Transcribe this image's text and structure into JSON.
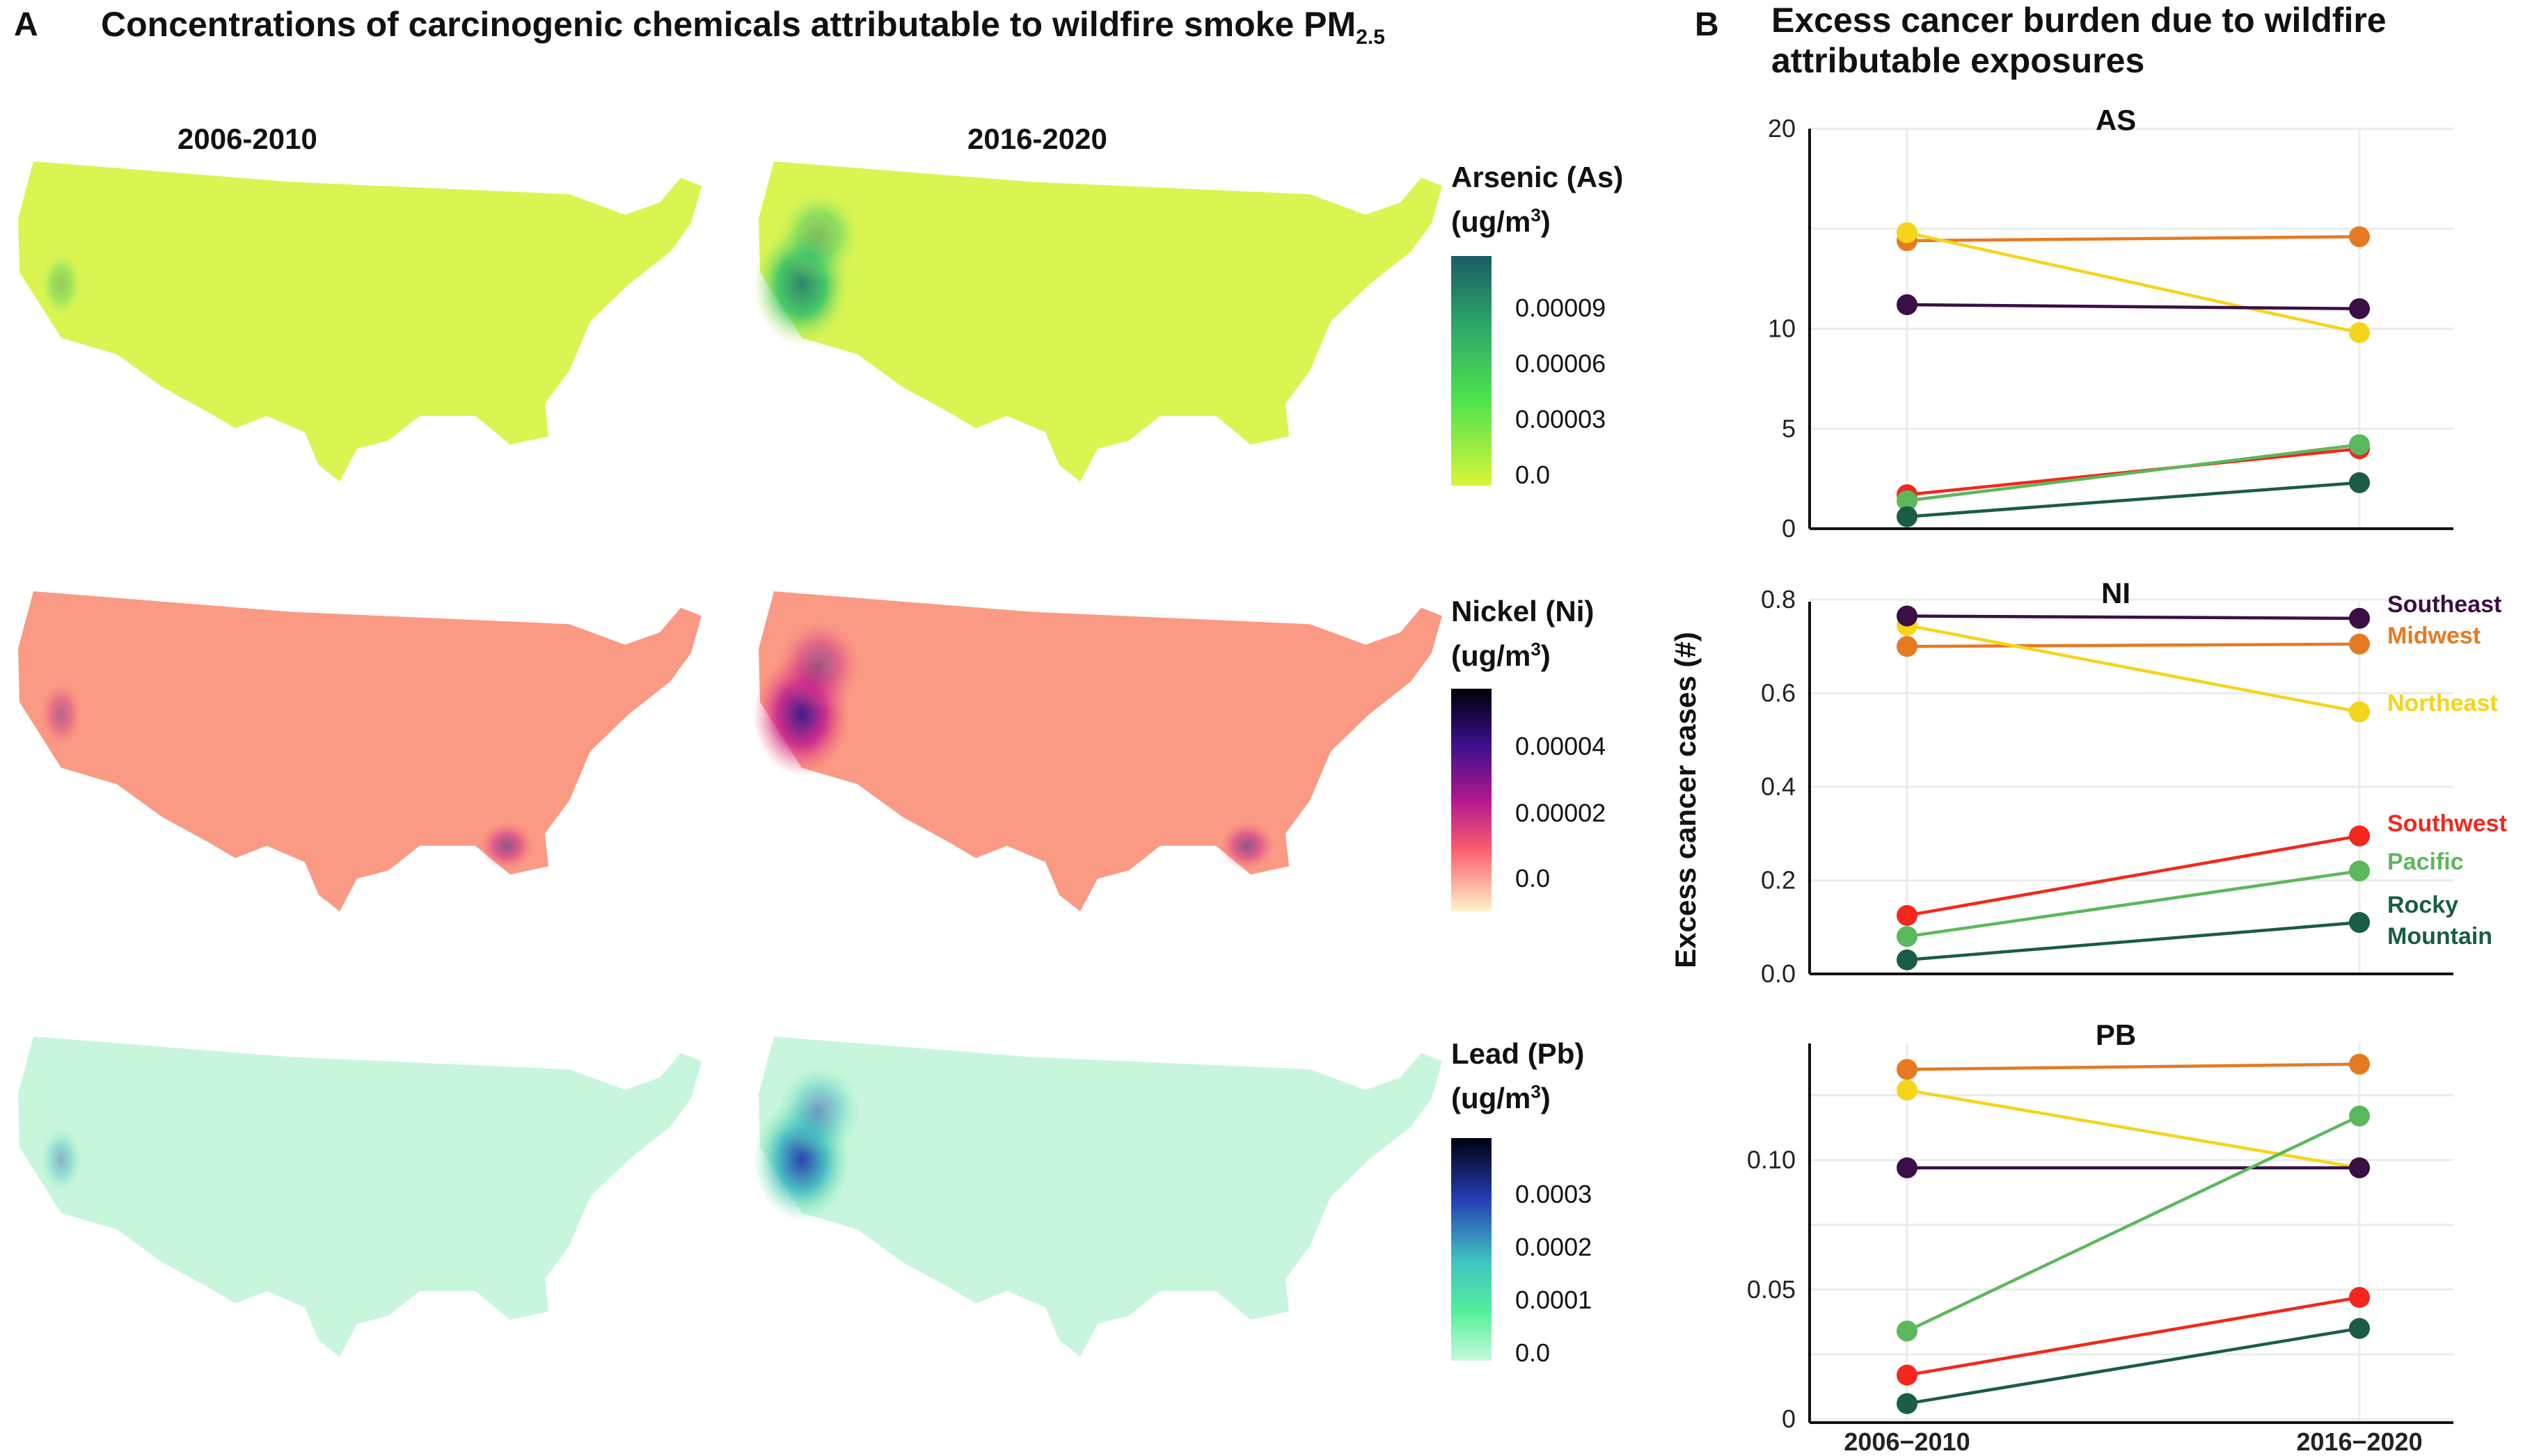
{
  "panel_a": {
    "letter": "A",
    "title": "Concentrations of carcinogenic chemicals attributable to wildfire smoke PM",
    "title_sub": "2.5",
    "columns": [
      "2006-2010",
      "2016-2020"
    ],
    "legends": [
      {
        "line1": "Arsenic (As)",
        "line2_pre": "(ug/m",
        "line2_sup": "3",
        "line2_post": ")",
        "ticks": [
          "0.00009",
          "0.00006",
          "0.00003",
          "0.0"
        ],
        "colors": [
          "#1a5d63",
          "#2ea66a",
          "#4ce24d",
          "#d8f53a"
        ]
      },
      {
        "line1": "Nickel (Ni)",
        "line2_pre": "(ug/m",
        "line2_sup": "3",
        "line2_post": ")",
        "ticks": [
          "0.00004",
          "0.00002",
          "0.0"
        ],
        "colors": [
          "#000004",
          "#3b0f8c",
          "#b2188f",
          "#fb5c6e",
          "#fdf4c8"
        ]
      },
      {
        "line1": "Lead (Pb)",
        "line2_pre": "(ug/m",
        "line2_sup": "3",
        "line2_post": ")",
        "ticks": [
          "0.0003",
          "0.0002",
          "0.0001",
          "0.0"
        ],
        "colors": [
          "#000010",
          "#2540b5",
          "#3fc3c1",
          "#53f09a",
          "#c6f8d9"
        ]
      }
    ],
    "map_fills": [
      "#d9f552",
      "#fa9a84",
      "#c8f6dc"
    ]
  },
  "panel_b": {
    "letter": "B",
    "title_line1": "Excess cancer burden due to wildfire",
    "title_line2": "attributable exposures"
  },
  "chart_data": {
    "type": "line",
    "ylabel": "Excess cancer cases (#)",
    "x": [
      "2006−2010",
      "2016−2020"
    ],
    "legend": [
      {
        "name": "Southeast",
        "color": "#3b0f45"
      },
      {
        "name": "Midwest",
        "color": "#e67a22"
      },
      {
        "name": "Northeast",
        "color": "#f5d51a"
      },
      {
        "name": "Southwest",
        "color": "#f5261c"
      },
      {
        "name": "Pacific",
        "color": "#5cb85c"
      },
      {
        "name": "Rocky",
        "color": "#1a5c45",
        "name2": "Mountain"
      }
    ],
    "panels": [
      {
        "title": "AS",
        "ylim": [
          0,
          20
        ],
        "yticks": [
          {
            "v": 0,
            "l": "0"
          },
          {
            "v": 5,
            "l": "5"
          },
          {
            "v": 10,
            "l": "10"
          },
          {
            "v": 20,
            "l": "20"
          }
        ],
        "gridlines": [
          0,
          5,
          10,
          15,
          20
        ],
        "series": [
          {
            "color": "#e67a22",
            "values": [
              14.4,
              14.6
            ]
          },
          {
            "color": "#f5d51a",
            "values": [
              14.8,
              9.8
            ]
          },
          {
            "color": "#3b0f45",
            "values": [
              11.2,
              11.0
            ]
          },
          {
            "color": "#f5261c",
            "values": [
              1.7,
              4.0
            ]
          },
          {
            "color": "#5cb85c",
            "values": [
              1.4,
              4.2
            ]
          },
          {
            "color": "#1a5c45",
            "values": [
              0.6,
              2.3
            ]
          }
        ]
      },
      {
        "title": "NI",
        "ylim": [
          0,
          0.8
        ],
        "yticks": [
          {
            "v": 0,
            "l": "0.0"
          },
          {
            "v": 0.2,
            "l": "0.2"
          },
          {
            "v": 0.4,
            "l": "0.4"
          },
          {
            "v": 0.6,
            "l": "0.6"
          },
          {
            "v": 0.8,
            "l": "0.8"
          }
        ],
        "gridlines": [
          0,
          0.2,
          0.4,
          0.6,
          0.8
        ],
        "series": [
          {
            "color": "#e67a22",
            "values": [
              0.7,
              0.705
            ]
          },
          {
            "color": "#f5d51a",
            "values": [
              0.745,
              0.56
            ]
          },
          {
            "color": "#3b0f45",
            "values": [
              0.765,
              0.76
            ]
          },
          {
            "color": "#f5261c",
            "values": [
              0.125,
              0.295
            ]
          },
          {
            "color": "#5cb85c",
            "values": [
              0.08,
              0.22
            ]
          },
          {
            "color": "#1a5c45",
            "values": [
              0.03,
              0.11
            ]
          }
        ]
      },
      {
        "title": "PB",
        "ylim": [
          0,
          0.145
        ],
        "yticks": [
          {
            "v": 0,
            "l": "0"
          },
          {
            "v": 0.05,
            "l": "0.05"
          },
          {
            "v": 0.1,
            "l": "0.10"
          }
        ],
        "gridlines": [
          0,
          0.025,
          0.05,
          0.075,
          0.1,
          0.125
        ],
        "series": [
          {
            "color": "#e67a22",
            "values": [
              0.135,
              0.137
            ]
          },
          {
            "color": "#f5d51a",
            "values": [
              0.127,
              0.097
            ]
          },
          {
            "color": "#3b0f45",
            "values": [
              0.097,
              0.097
            ]
          },
          {
            "color": "#5cb85c",
            "values": [
              0.034,
              0.117
            ]
          },
          {
            "color": "#f5261c",
            "values": [
              0.017,
              0.047
            ]
          },
          {
            "color": "#1a5c45",
            "values": [
              0.006,
              0.035
            ]
          }
        ]
      }
    ]
  }
}
